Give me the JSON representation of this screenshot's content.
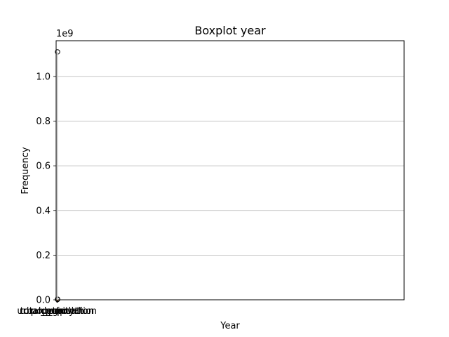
{
  "chart_data": {
    "type": "boxplot",
    "title": "Boxplot year",
    "xlabel": "Year",
    "ylabel": "Frequency",
    "y_offset_label": "1e9",
    "ylim": [
      0,
      1160000000.0
    ],
    "y_ticks": [
      {
        "value": 0.0,
        "label": "0.0"
      },
      {
        "value": 200000000.0,
        "label": "0.2"
      },
      {
        "value": 400000000.0,
        "label": "0.4"
      },
      {
        "value": 600000000.0,
        "label": "0.6"
      },
      {
        "value": 800000000.0,
        "label": "0.8"
      },
      {
        "value": 1000000000.0,
        "label": "1.0"
      }
    ],
    "grid": "y",
    "x_ticklabels_overlapping": [
      "rural_population",
      "urban_population",
      "total_population",
      "year",
      "pop_growth",
      "density",
      "tfr"
    ],
    "series": [
      {
        "q1": 0,
        "median": 0,
        "q3": 0,
        "whisker_low": 0,
        "whisker_high": 0,
        "outliers": [
          1110000000.0,
          3000000.0,
          2000000.0,
          1500000.0
        ]
      }
    ],
    "colors": {
      "box": "#000000",
      "grid": "#b0b0b0",
      "median": "#ff7f0e"
    }
  }
}
